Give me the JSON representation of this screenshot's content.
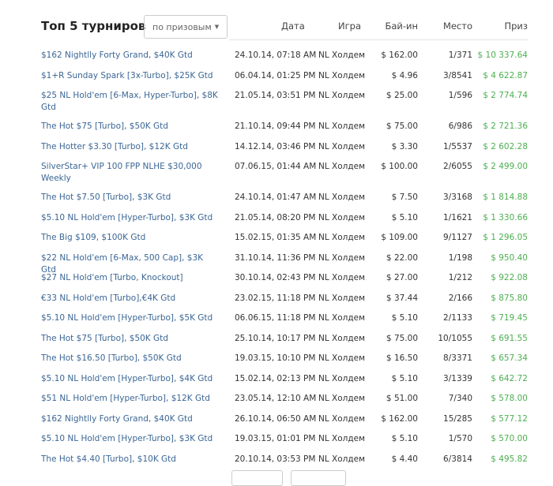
{
  "title": "Топ 5 турниров",
  "sort_dropdown": {
    "value": "по призовым",
    "icon": "caret-down-icon"
  },
  "columns": [
    "Дата",
    "Игра",
    "Бай-ин",
    "Место",
    "Приз"
  ],
  "colors": {
    "link": "#3b6694",
    "prize": "#4caf50"
  },
  "rows": [
    {
      "name": "$162 Nightlly Forty Grand, $40K Gtd",
      "date": "24.10.14, 07:18 AM",
      "game": "NL Холдем",
      "buyin": "$ 162.00",
      "place": "1/371",
      "prize": "$ 10 337.64"
    },
    {
      "name": "$1+R Sunday Spark [3x-Turbo], $25K Gtd",
      "date": "06.04.14, 01:25 PM",
      "game": "NL Холдем",
      "buyin": "$ 4.96",
      "place": "3/8541",
      "prize": "$ 4 622.87"
    },
    {
      "name": "$25 NL Hold'em [6-Max, Hyper-Turbo], $8K Gtd",
      "date": "21.05.14, 03:51 PM",
      "game": "NL Холдем",
      "buyin": "$ 25.00",
      "place": "1/596",
      "prize": "$ 2 774.74"
    },
    {
      "name": "The Hot $75 [Turbo], $50K Gtd",
      "date": "21.10.14, 09:44 PM",
      "game": "NL Холдем",
      "buyin": "$ 75.00",
      "place": "6/986",
      "prize": "$ 2 721.36"
    },
    {
      "name": "The Hotter $3.30 [Turbo], $12K Gtd",
      "date": "14.12.14, 03:46 PM",
      "game": "NL Холдем",
      "buyin": "$ 3.30",
      "place": "1/5537",
      "prize": "$ 2 602.28"
    },
    {
      "name": "SilverStar+ VIP 100 FPP NLHE $30,000 Weekly",
      "date": "07.06.15, 01:44 AM",
      "game": "NL Холдем",
      "buyin": "$ 100.00",
      "place": "2/6055",
      "prize": "$ 2 499.00"
    },
    {
      "name": "The Hot $7.50 [Turbo], $3K Gtd",
      "date": "24.10.14, 01:47 AM",
      "game": "NL Холдем",
      "buyin": "$ 7.50",
      "place": "3/3168",
      "prize": "$ 1 814.88"
    },
    {
      "name": "$5.10 NL Hold'em [Hyper-Turbo], $3K Gtd",
      "date": "21.05.14, 08:20 PM",
      "game": "NL Холдем",
      "buyin": "$ 5.10",
      "place": "1/1621",
      "prize": "$ 1 330.66"
    },
    {
      "name": "The Big $109, $100K Gtd",
      "date": "15.02.15, 01:35 AM",
      "game": "NL Холдем",
      "buyin": "$ 109.00",
      "place": "9/1127",
      "prize": "$ 1 296.05"
    },
    {
      "name": "$22 NL Hold'em [6-Max, 500 Cap], $3K Gtd",
      "date": "31.10.14, 11:36 PM",
      "game": "NL Холдем",
      "buyin": "$ 22.00",
      "place": "1/198",
      "prize": "$ 950.40"
    },
    {
      "name": "$27 NL Hold'em [Turbo, Knockout]",
      "date": "30.10.14, 02:43 PM",
      "game": "NL Холдем",
      "buyin": "$ 27.00",
      "place": "1/212",
      "prize": "$ 922.08"
    },
    {
      "name": "€33 NL Hold'em [Turbo],€4K Gtd",
      "date": "23.02.15, 11:18 PM",
      "game": "NL Холдем",
      "buyin": "$ 37.44",
      "place": "2/166",
      "prize": "$ 875.80"
    },
    {
      "name": "$5.10 NL Hold'em [Hyper-Turbo], $5K Gtd",
      "date": "06.06.15, 11:18 PM",
      "game": "NL Холдем",
      "buyin": "$ 5.10",
      "place": "2/1133",
      "prize": "$ 719.45"
    },
    {
      "name": "The Hot $75 [Turbo], $50K Gtd",
      "date": "25.10.14, 10:17 PM",
      "game": "NL Холдем",
      "buyin": "$ 75.00",
      "place": "10/1055",
      "prize": "$ 691.55"
    },
    {
      "name": "The Hot $16.50 [Turbo], $50K Gtd",
      "date": "19.03.15, 10:10 PM",
      "game": "NL Холдем",
      "buyin": "$ 16.50",
      "place": "8/3371",
      "prize": "$ 657.34"
    },
    {
      "name": "$5.10 NL Hold'em [Hyper-Turbo], $4K Gtd",
      "date": "15.02.14, 02:13 PM",
      "game": "NL Холдем",
      "buyin": "$ 5.10",
      "place": "3/1339",
      "prize": "$ 642.72"
    },
    {
      "name": "$51 NL Hold'em [Hyper-Turbo], $12K Gtd",
      "date": "23.05.14, 12:10 AM",
      "game": "NL Холдем",
      "buyin": "$ 51.00",
      "place": "7/340",
      "prize": "$ 578.00"
    },
    {
      "name": "$162 Nightlly Forty Grand, $40K Gtd",
      "date": "26.10.14, 06:50 AM",
      "game": "NL Холдем",
      "buyin": "$ 162.00",
      "place": "15/285",
      "prize": "$ 577.12"
    },
    {
      "name": "$5.10 NL Hold'em [Hyper-Turbo], $3K Gtd",
      "date": "19.03.15, 01:01 PM",
      "game": "NL Холдем",
      "buyin": "$ 5.10",
      "place": "1/570",
      "prize": "$ 570.00"
    },
    {
      "name": "The Hot $4.40 [Turbo], $10K Gtd",
      "date": "20.10.14, 03:53 PM",
      "game": "NL Холдем",
      "buyin": "$ 4.40",
      "place": "6/3814",
      "prize": "$ 495.82"
    }
  ]
}
